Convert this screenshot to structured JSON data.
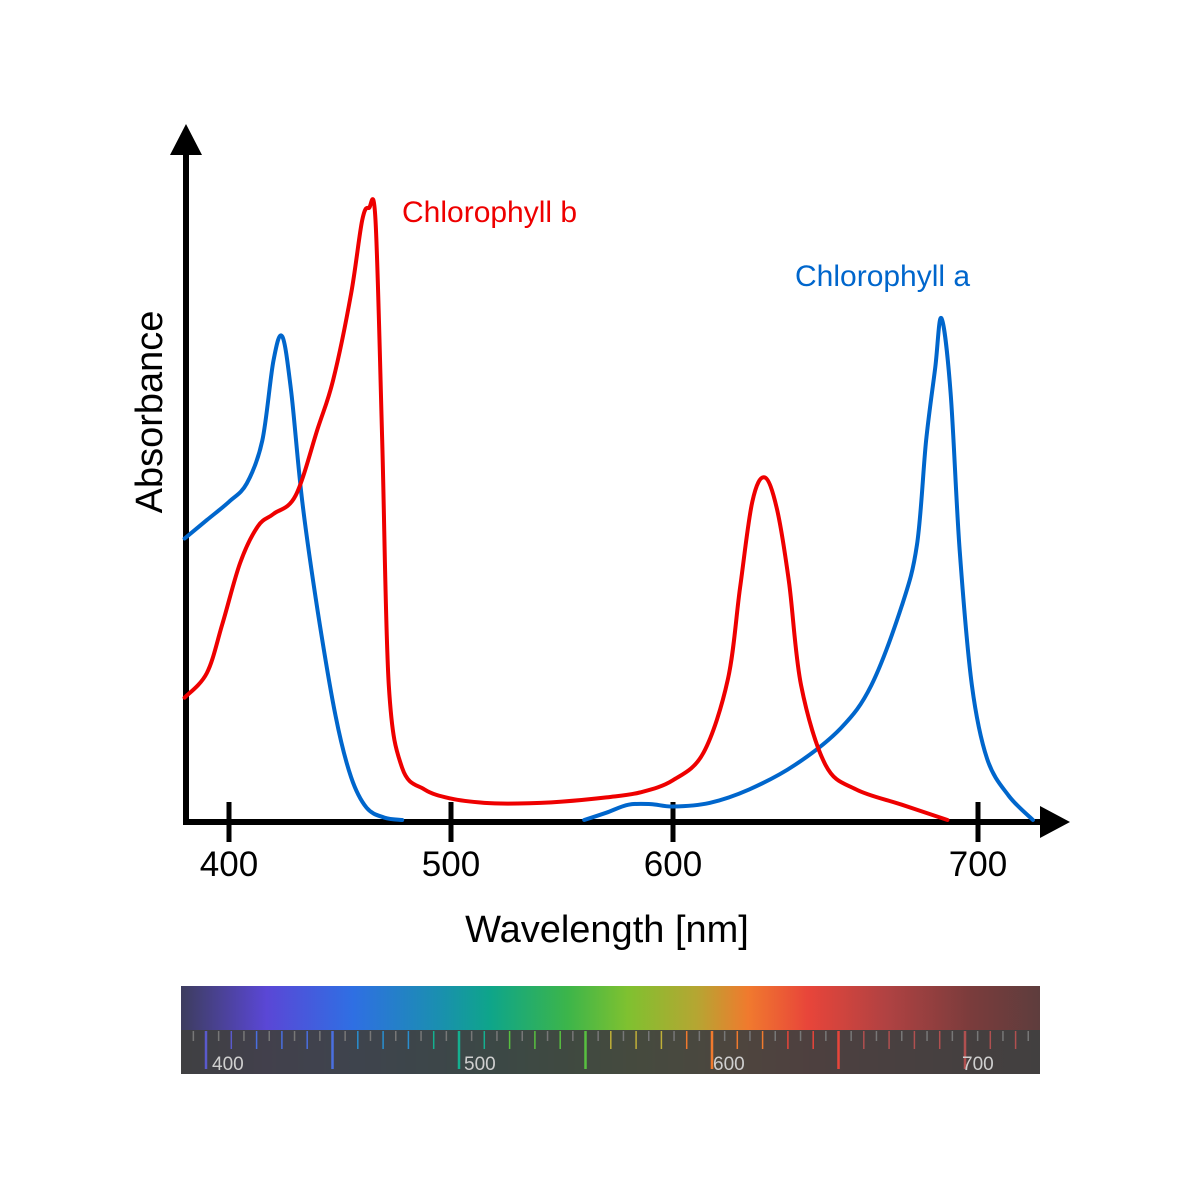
{
  "chart_data": {
    "type": "line",
    "title": "",
    "xlabel": "Wavelength [nm]",
    "ylabel": "Absorbance",
    "xlim": [
      380,
      730
    ],
    "ylim": [
      0,
      1.0
    ],
    "x_ticks": [
      "400",
      "500",
      "600",
      "700"
    ],
    "grid": false,
    "colors": {
      "chlorophyll_a": "#0066cc",
      "chlorophyll_b": "#ee0000",
      "axis": "#000000"
    },
    "series": [
      {
        "name": "Chlorophyll a",
        "key": "chlorophyll_a",
        "label_position": "above-right-peak",
        "segments": [
          [
            [
              380,
              0.46
            ],
            [
              390,
              0.49
            ],
            [
              400,
              0.52
            ],
            [
              408,
              0.55
            ],
            [
              415,
              0.62
            ],
            [
              420,
              0.75
            ],
            [
              424,
              0.79
            ],
            [
              428,
              0.7
            ],
            [
              433,
              0.52
            ],
            [
              440,
              0.34
            ],
            [
              448,
              0.17
            ],
            [
              455,
              0.07
            ],
            [
              462,
              0.02
            ],
            [
              470,
              0.004
            ],
            [
              478,
              0.0
            ]
          ],
          [
            [
              560,
              0.0
            ],
            [
              570,
              0.012
            ],
            [
              580,
              0.025
            ],
            [
              590,
              0.026
            ],
            [
              600,
              0.022
            ],
            [
              612,
              0.028
            ],
            [
              625,
              0.05
            ],
            [
              640,
              0.09
            ],
            [
              655,
              0.15
            ],
            [
              665,
              0.22
            ],
            [
              675,
              0.35
            ],
            [
              680,
              0.45
            ],
            [
              683,
              0.62
            ],
            [
              686,
              0.74
            ],
            [
              688,
              0.82
            ],
            [
              691,
              0.7
            ],
            [
              694,
              0.44
            ],
            [
              698,
              0.22
            ],
            [
              703,
              0.1
            ],
            [
              710,
              0.04
            ],
            [
              718,
              0.0
            ]
          ]
        ]
      },
      {
        "name": "Chlorophyll b",
        "key": "chlorophyll_b",
        "label_position": "right-of-peak",
        "segments": [
          [
            [
              380,
              0.2
            ],
            [
              390,
              0.24
            ],
            [
              397,
              0.32
            ],
            [
              405,
              0.42
            ],
            [
              413,
              0.48
            ],
            [
              420,
              0.5
            ],
            [
              430,
              0.53
            ],
            [
              440,
              0.64
            ],
            [
              447,
              0.72
            ],
            [
              455,
              0.86
            ],
            [
              460,
              0.98
            ],
            [
              463,
              1.0
            ],
            [
              466,
              0.98
            ],
            [
              469,
              0.62
            ],
            [
              472,
              0.22
            ],
            [
              478,
              0.085
            ],
            [
              488,
              0.05
            ],
            [
              500,
              0.035
            ],
            [
              515,
              0.028
            ],
            [
              530,
              0.027
            ],
            [
              550,
              0.03
            ],
            [
              570,
              0.037
            ],
            [
              585,
              0.045
            ],
            [
              600,
              0.065
            ],
            [
              610,
              0.11
            ],
            [
              618,
              0.23
            ],
            [
              622,
              0.38
            ],
            [
              626,
              0.52
            ],
            [
              630,
              0.56
            ],
            [
              634,
              0.51
            ],
            [
              638,
              0.39
            ],
            [
              642,
              0.22
            ],
            [
              650,
              0.09
            ],
            [
              660,
              0.05
            ],
            [
              675,
              0.025
            ],
            [
              690,
              0.0
            ]
          ]
        ]
      }
    ],
    "spectrum_bar": {
      "tick_labels": [
        "400",
        "500",
        "600",
        "700"
      ]
    }
  }
}
